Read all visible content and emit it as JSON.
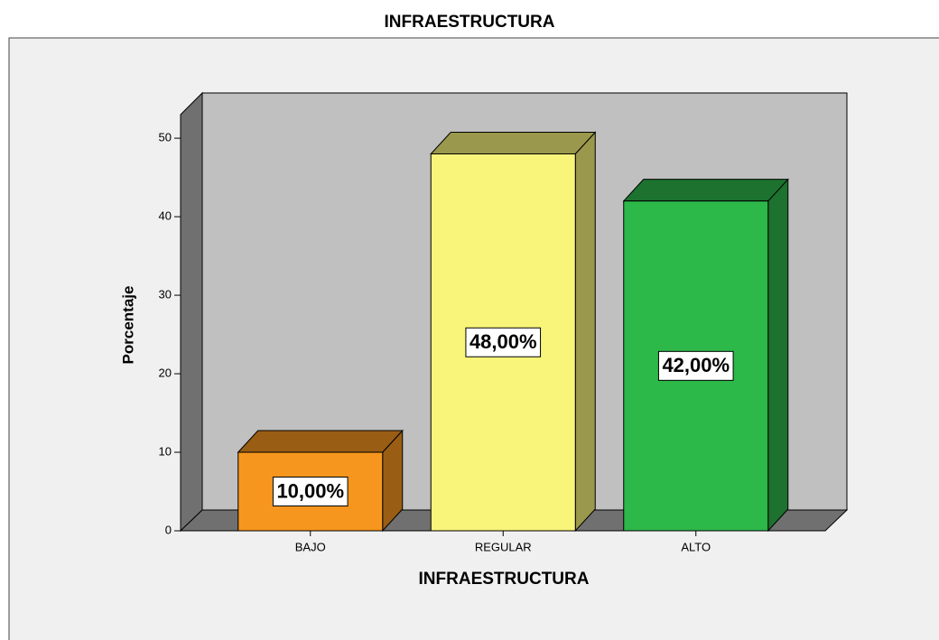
{
  "chart_data": {
    "type": "bar3d",
    "title": "INFRAESTRUCTURA",
    "x_label": "INFRAESTRUCTURA",
    "y_label": "Porcentaje",
    "categories": [
      "BAJO",
      "REGULAR",
      "ALTO"
    ],
    "values": [
      10,
      48,
      42
    ],
    "value_labels": [
      "10,00%",
      "48,00%",
      "42,00%"
    ],
    "colors": [
      "#f7961e",
      "#f9f57a",
      "#2db84a"
    ],
    "ylim": [
      0,
      53
    ],
    "yticks": [
      0,
      10,
      20,
      30,
      40,
      50
    ]
  }
}
